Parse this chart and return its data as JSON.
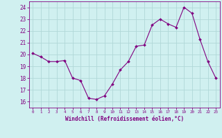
{
  "x": [
    0,
    1,
    2,
    3,
    4,
    5,
    6,
    7,
    8,
    9,
    10,
    11,
    12,
    13,
    14,
    15,
    16,
    17,
    18,
    19,
    20,
    21,
    22,
    23
  ],
  "y": [
    20.1,
    19.8,
    19.4,
    19.4,
    19.5,
    18.0,
    17.8,
    16.3,
    16.2,
    16.5,
    17.5,
    18.7,
    19.4,
    20.7,
    20.8,
    22.5,
    23.0,
    22.6,
    22.3,
    24.0,
    23.5,
    21.3,
    19.4,
    18.0
  ],
  "line_color": "#800080",
  "marker": "D",
  "marker_size": 2.0,
  "bg_color": "#d0f0f0",
  "grid_color": "#b0d8d8",
  "xlabel": "Windchill (Refroidissement éolien,°C)",
  "ylabel_ticks": [
    16,
    17,
    18,
    19,
    20,
    21,
    22,
    23,
    24
  ],
  "xlim": [
    -0.5,
    23.5
  ],
  "ylim": [
    15.5,
    24.5
  ],
  "xlabel_color": "#800080",
  "tick_color": "#800080"
}
